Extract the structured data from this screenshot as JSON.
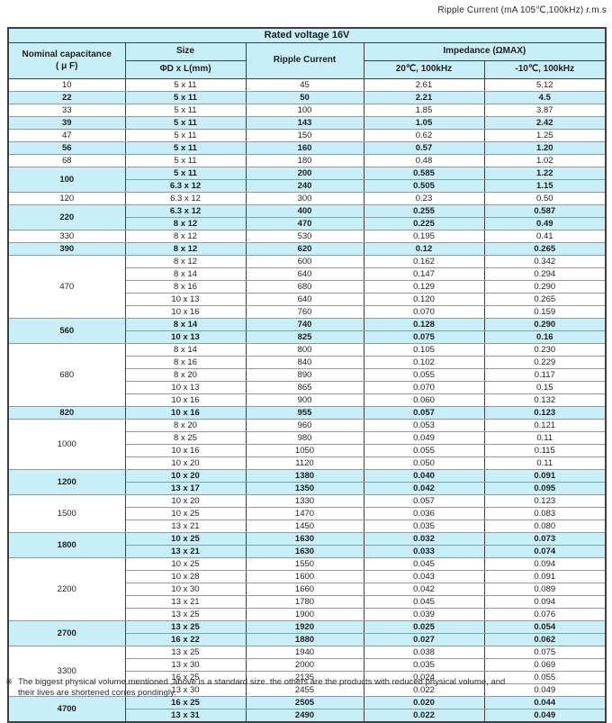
{
  "page": {
    "top_note": "Ripple Current (mA 105℃,100kHz) r.m.s",
    "footnote_marker": "※",
    "footnote_line1": "The biggest physical volume mentioned ,above is a standard size. the others are the products with reduced physical volume, and",
    "footnote_line2": "their lives are shortened corres pondingly."
  },
  "colors": {
    "highlight_row": "#c8eff8",
    "border_dark": "#3f3f3f",
    "border_light": "#979797"
  },
  "table": {
    "title": "Rated voltage 16V",
    "headers": {
      "capacitance_line1": "Nominal capacitance",
      "capacitance_line2": "( μ F)",
      "size": "Size",
      "size_dim": "ΦD x L(mm)",
      "ripple": "Ripple Current",
      "impedance": "Impedance (ΩMAX)",
      "imp_20c": "20℃, 100kHz",
      "imp_neg10c": "-10℃, 100kHz"
    },
    "groups": [
      {
        "capacitance": "10",
        "highlight": false,
        "rows": [
          [
            "5 x 11",
            "45",
            "2.61",
            "5.12"
          ]
        ]
      },
      {
        "capacitance": "22",
        "highlight": true,
        "rows": [
          [
            "5 x 11",
            "50",
            "2.21",
            "4.5"
          ]
        ]
      },
      {
        "capacitance": "33",
        "highlight": false,
        "rows": [
          [
            "5 x 11",
            "100",
            "1.85",
            "3.87"
          ]
        ]
      },
      {
        "capacitance": "39",
        "highlight": true,
        "rows": [
          [
            "5 x 11",
            "143",
            "1.05",
            "2.42"
          ]
        ]
      },
      {
        "capacitance": "47",
        "highlight": false,
        "rows": [
          [
            "5 x 11",
            "150",
            "0.62",
            "1.25"
          ]
        ]
      },
      {
        "capacitance": "56",
        "highlight": true,
        "rows": [
          [
            "5 x 11",
            "160",
            "0.57",
            "1.20"
          ]
        ]
      },
      {
        "capacitance": "68",
        "highlight": false,
        "rows": [
          [
            "5 x 11",
            "180",
            "0.48",
            "1.02"
          ]
        ]
      },
      {
        "capacitance": "100",
        "highlight": true,
        "rows": [
          [
            "5 x 11",
            "200",
            "0.585",
            "1.22"
          ],
          [
            "6.3 x 12",
            "240",
            "0.505",
            "1.15"
          ]
        ]
      },
      {
        "capacitance": "120",
        "highlight": false,
        "rows": [
          [
            "6.3 x 12",
            "300",
            "0.23",
            "0.50"
          ]
        ]
      },
      {
        "capacitance": "220",
        "highlight": true,
        "rows": [
          [
            "6.3 x 12",
            "400",
            "0.255",
            "0.587"
          ],
          [
            "8 x 12",
            "470",
            "0.225",
            "0.49"
          ]
        ]
      },
      {
        "capacitance": "330",
        "highlight": false,
        "rows": [
          [
            "8 x 12",
            "530",
            "0.195",
            "0.41"
          ]
        ]
      },
      {
        "capacitance": "390",
        "highlight": true,
        "rows": [
          [
            "8 x 12",
            "620",
            "0.12",
            "0.265"
          ]
        ]
      },
      {
        "capacitance": "470",
        "highlight": false,
        "rows": [
          [
            "8 x 12",
            "600",
            "0.162",
            "0.342"
          ],
          [
            "8 x 14",
            "640",
            "0.147",
            "0.294"
          ],
          [
            "8 x 16",
            "680",
            "0.129",
            "0.290"
          ],
          [
            "10 x 13",
            "640",
            "0.120",
            "0.265"
          ],
          [
            "10 x 16",
            "760",
            "0.070",
            "0.159"
          ]
        ]
      },
      {
        "capacitance": "560",
        "highlight": true,
        "rows": [
          [
            "8 x 14",
            "740",
            "0.128",
            "0.290"
          ],
          [
            "10 x 13",
            "825",
            "0.075",
            "0.16"
          ]
        ]
      },
      {
        "capacitance": "680",
        "highlight": false,
        "rows": [
          [
            "8 x 14",
            "800",
            "0.105",
            "0.230"
          ],
          [
            "8 x 16",
            "840",
            "0.102",
            "0.229"
          ],
          [
            "8 x 20",
            "890",
            "0.055",
            "0.117"
          ],
          [
            "10 x 13",
            "865",
            "0.070",
            "0.15"
          ],
          [
            "10 x 16",
            "900",
            "0.060",
            "0.132"
          ]
        ]
      },
      {
        "capacitance": "820",
        "highlight": true,
        "rows": [
          [
            "10 x 16",
            "955",
            "0.057",
            "0.123"
          ]
        ]
      },
      {
        "capacitance": "1000",
        "highlight": false,
        "rows": [
          [
            "8 x 20",
            "960",
            "0.053",
            "0.121"
          ],
          [
            "8 x 25",
            "980",
            "0.049",
            "0.11"
          ],
          [
            "10 x 16",
            "1050",
            "0.055",
            "0.115"
          ],
          [
            "10 x 20",
            "1120",
            "0.050",
            "0.11"
          ]
        ]
      },
      {
        "capacitance": "1200",
        "highlight": true,
        "rows": [
          [
            "10 x 20",
            "1380",
            "0.040",
            "0.091"
          ],
          [
            "13 x 17",
            "1350",
            "0.042",
            "0.095"
          ]
        ]
      },
      {
        "capacitance": "1500",
        "highlight": false,
        "rows": [
          [
            "10 x 20",
            "1330",
            "0.057",
            "0.123"
          ],
          [
            "10 x 25",
            "1470",
            "0.036",
            "0.083"
          ],
          [
            "13 x 21",
            "1450",
            "0.035",
            "0.080"
          ]
        ]
      },
      {
        "capacitance": "1800",
        "highlight": true,
        "rows": [
          [
            "10 x 25",
            "1630",
            "0.032",
            "0.073"
          ],
          [
            "13 x 21",
            "1630",
            "0.033",
            "0.074"
          ]
        ]
      },
      {
        "capacitance": "2200",
        "highlight": false,
        "rows": [
          [
            "10 x 25",
            "1550",
            "0.045",
            "0.094"
          ],
          [
            "10 x 28",
            "1600",
            "0.043",
            "0.091"
          ],
          [
            "10 x 30",
            "1660",
            "0.042",
            "0.089"
          ],
          [
            "13 x 21",
            "1780",
            "0.045",
            "0.094"
          ],
          [
            "13 x 25",
            "1900",
            "0.039",
            "0.076"
          ]
        ]
      },
      {
        "capacitance": "2700",
        "highlight": true,
        "rows": [
          [
            "13 x 25",
            "1920",
            "0.025",
            "0.054"
          ],
          [
            "16 x 22",
            "1880",
            "0.027",
            "0.062"
          ]
        ]
      },
      {
        "capacitance": "3300",
        "highlight": false,
        "rows": [
          [
            "13 x 25",
            "1940",
            "0.038",
            "0.075"
          ],
          [
            "13 x 30",
            "2000",
            "0.035",
            "0.069"
          ],
          [
            "16 x 25",
            "2135",
            "0.024",
            "0.055"
          ],
          [
            "13 x 30",
            "2455",
            "0.022",
            "0.049"
          ]
        ]
      },
      {
        "capacitance": "4700",
        "highlight": true,
        "rows": [
          [
            "16 x 25",
            "2505",
            "0.020",
            "0.044"
          ],
          [
            "13 x 31",
            "2490",
            "0.022",
            "0.049"
          ]
        ]
      }
    ]
  }
}
